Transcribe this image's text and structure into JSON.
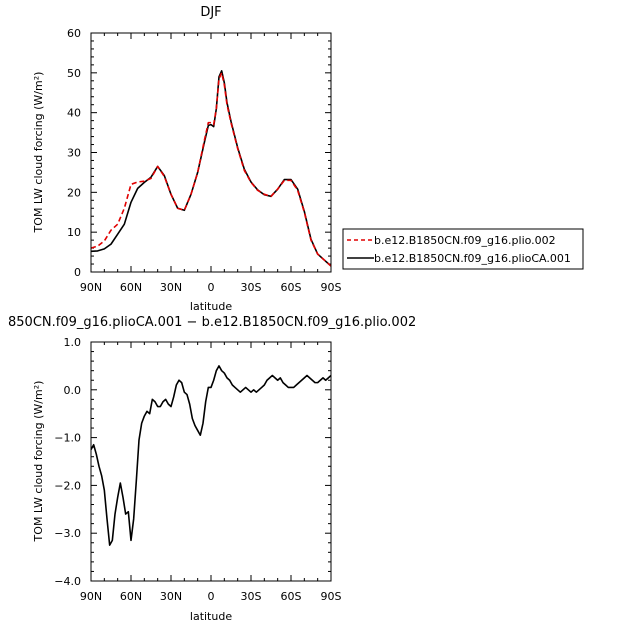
{
  "chart_data": [
    {
      "type": "line",
      "title": "DJF",
      "xlabel": "latitude",
      "ylabel": "TOM LW cloud forcing (W/m²)",
      "xlim": [
        90,
        -90
      ],
      "ylim": [
        0,
        60
      ],
      "x_ticks": [
        90,
        60,
        30,
        0,
        -30,
        -60,
        -90
      ],
      "x_tick_labels": [
        "90N",
        "60N",
        "30N",
        "0",
        "30S",
        "60S",
        "90S"
      ],
      "y_ticks": [
        0,
        10,
        20,
        30,
        40,
        50,
        60
      ],
      "y_tick_labels": [
        "0",
        "10",
        "20",
        "30",
        "40",
        "50",
        "60"
      ],
      "legend_position": "right",
      "series": [
        {
          "name": "b.e12.B1850CN.f09_g16.plio.002",
          "color": "#e00000",
          "dash": "dashed",
          "x": [
            90,
            85,
            80,
            75,
            70,
            65,
            60,
            55,
            50,
            45,
            40,
            35,
            30,
            25,
            20,
            15,
            10,
            5,
            2,
            0,
            -2,
            -4,
            -6,
            -8,
            -10,
            -12,
            -15,
            -20,
            -25,
            -30,
            -35,
            -40,
            -45,
            -50,
            -55,
            -60,
            -65,
            -70,
            -75,
            -80,
            -85,
            -90
          ],
          "y": [
            6.0,
            6.5,
            7.8,
            10.5,
            12.0,
            16.0,
            22.0,
            22.6,
            22.8,
            23.5,
            26.5,
            24.0,
            19.5,
            16.0,
            15.5,
            19.5,
            25.0,
            33.0,
            37.5,
            37.5,
            37.0,
            41.0,
            48.5,
            50.0,
            47.0,
            42.0,
            37.5,
            31.0,
            25.5,
            22.5,
            20.5,
            19.5,
            19.0,
            20.8,
            23.0,
            23.0,
            20.5,
            15.0,
            8.0,
            4.5,
            3.0,
            1.5
          ]
        },
        {
          "name": "b.e12.B1850CN.f09_g16.plioCA.001",
          "color": "#000000",
          "dash": "solid",
          "x": [
            90,
            85,
            80,
            75,
            70,
            65,
            60,
            55,
            50,
            45,
            40,
            35,
            30,
            25,
            20,
            15,
            10,
            5,
            2,
            0,
            -2,
            -4,
            -6,
            -8,
            -10,
            -12,
            -15,
            -20,
            -25,
            -30,
            -35,
            -40,
            -45,
            -50,
            -55,
            -60,
            -65,
            -70,
            -75,
            -80,
            -85,
            -90
          ],
          "y": [
            5.2,
            5.3,
            5.8,
            7.0,
            9.5,
            12.0,
            17.5,
            21.0,
            22.5,
            23.8,
            26.5,
            24.2,
            19.5,
            16.0,
            15.5,
            19.5,
            25.0,
            32.5,
            36.8,
            37.0,
            36.5,
            41.0,
            49.0,
            50.5,
            47.5,
            42.5,
            37.8,
            31.2,
            25.8,
            22.6,
            20.6,
            19.4,
            19.0,
            20.8,
            23.2,
            23.2,
            20.8,
            15.2,
            8.2,
            4.5,
            3.0,
            1.5
          ]
        }
      ]
    },
    {
      "type": "line",
      "title": "850CN.f09_g16.plioCA.001 − b.e12.B1850CN.f09_g16.plio.002",
      "xlabel": "latitude",
      "ylabel": "TOM LW cloud forcing (W/m²)",
      "xlim": [
        90,
        -90
      ],
      "ylim": [
        -4,
        1
      ],
      "x_ticks": [
        90,
        60,
        30,
        0,
        -30,
        -60,
        -90
      ],
      "x_tick_labels": [
        "90N",
        "60N",
        "30N",
        "0",
        "30S",
        "60S",
        "90S"
      ],
      "y_ticks": [
        1,
        0,
        -1,
        -2,
        -3,
        -4
      ],
      "y_tick_labels": [
        "1.0",
        "0.0",
        "−1.0",
        "−2.0",
        "−3.0",
        "−4.0"
      ],
      "series": [
        {
          "color": "#000000",
          "dash": "solid",
          "x": [
            90,
            88,
            86,
            84,
            82,
            80,
            78,
            76,
            74,
            72,
            70,
            68,
            66,
            64,
            62,
            60,
            58,
            56,
            54,
            52,
            50,
            48,
            46,
            44,
            42,
            40,
            38,
            36,
            34,
            32,
            30,
            28,
            26,
            24,
            22,
            20,
            18,
            16,
            14,
            12,
            10,
            8,
            6,
            4,
            2,
            0,
            -2,
            -4,
            -6,
            -8,
            -10,
            -12,
            -14,
            -16,
            -18,
            -20,
            -22,
            -24,
            -26,
            -28,
            -30,
            -32,
            -34,
            -36,
            -38,
            -40,
            -42,
            -44,
            -46,
            -48,
            -50,
            -52,
            -54,
            -56,
            -58,
            -60,
            -62,
            -64,
            -66,
            -68,
            -70,
            -72,
            -74,
            -76,
            -78,
            -80,
            -82,
            -84,
            -86,
            -88,
            -90
          ],
          "y": [
            -1.25,
            -1.15,
            -1.35,
            -1.6,
            -1.8,
            -2.1,
            -2.7,
            -3.25,
            -3.15,
            -2.6,
            -2.25,
            -1.95,
            -2.25,
            -2.6,
            -2.55,
            -3.15,
            -2.7,
            -1.9,
            -1.05,
            -0.7,
            -0.55,
            -0.45,
            -0.5,
            -0.2,
            -0.25,
            -0.35,
            -0.35,
            -0.25,
            -0.2,
            -0.3,
            -0.35,
            -0.15,
            0.1,
            0.2,
            0.15,
            -0.05,
            -0.1,
            -0.3,
            -0.6,
            -0.75,
            -0.85,
            -0.95,
            -0.7,
            -0.25,
            0.05,
            0.05,
            0.2,
            0.4,
            0.5,
            0.4,
            0.35,
            0.25,
            0.2,
            0.1,
            0.05,
            0.0,
            -0.05,
            0.0,
            0.05,
            0.0,
            -0.05,
            0.0,
            -0.05,
            0.0,
            0.05,
            0.1,
            0.2,
            0.25,
            0.3,
            0.25,
            0.2,
            0.25,
            0.15,
            0.1,
            0.05,
            0.05,
            0.05,
            0.1,
            0.15,
            0.2,
            0.25,
            0.3,
            0.25,
            0.2,
            0.15,
            0.15,
            0.2,
            0.25,
            0.2,
            0.25,
            0.3
          ]
        }
      ]
    }
  ]
}
